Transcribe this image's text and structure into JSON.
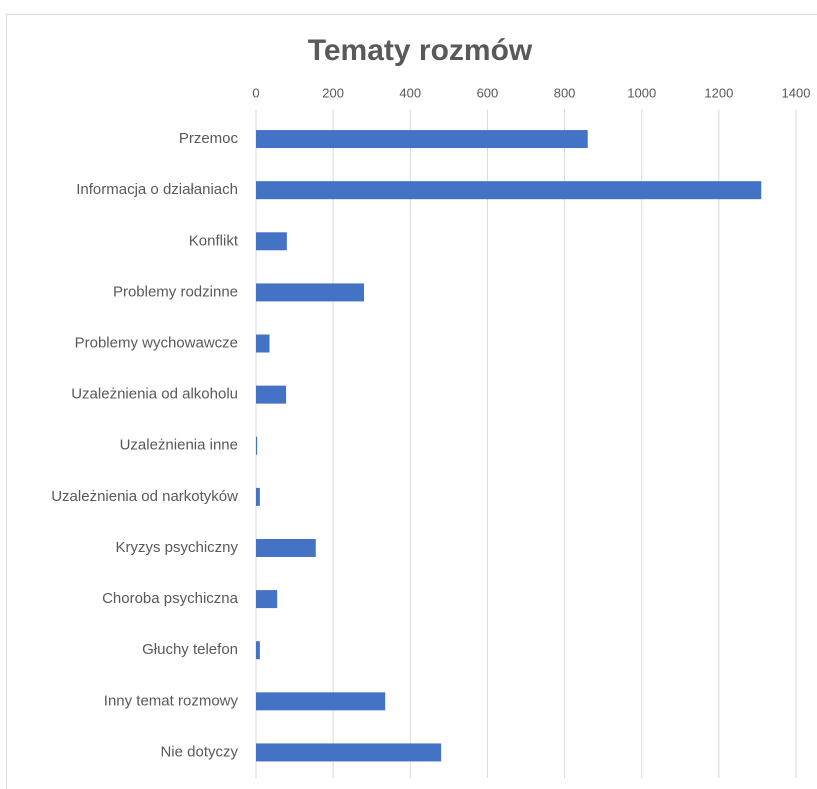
{
  "chart_data": {
    "type": "barh",
    "title": "Tematy rozmów",
    "categories": [
      "Przemoc",
      "Informacja o działaniach",
      "Konflikt",
      "Problemy rodzinne",
      "Problemy wychowawcze",
      "Uzależnienia od alkoholu",
      "Uzależnienia inne",
      "Uzależnienia od narkotyków",
      "Kryzys psychiczny",
      "Choroba psychiczna",
      "Głuchy telefon",
      "Inny temat rozmowy",
      "Nie dotyczy"
    ],
    "values": [
      860,
      1310,
      80,
      280,
      35,
      78,
      3,
      10,
      155,
      55,
      10,
      335,
      480
    ],
    "color": "#4472c4",
    "xlim": [
      0,
      1400
    ],
    "xticks": [
      0,
      200,
      400,
      600,
      800,
      1000,
      1200,
      1400
    ],
    "grid": true
  }
}
